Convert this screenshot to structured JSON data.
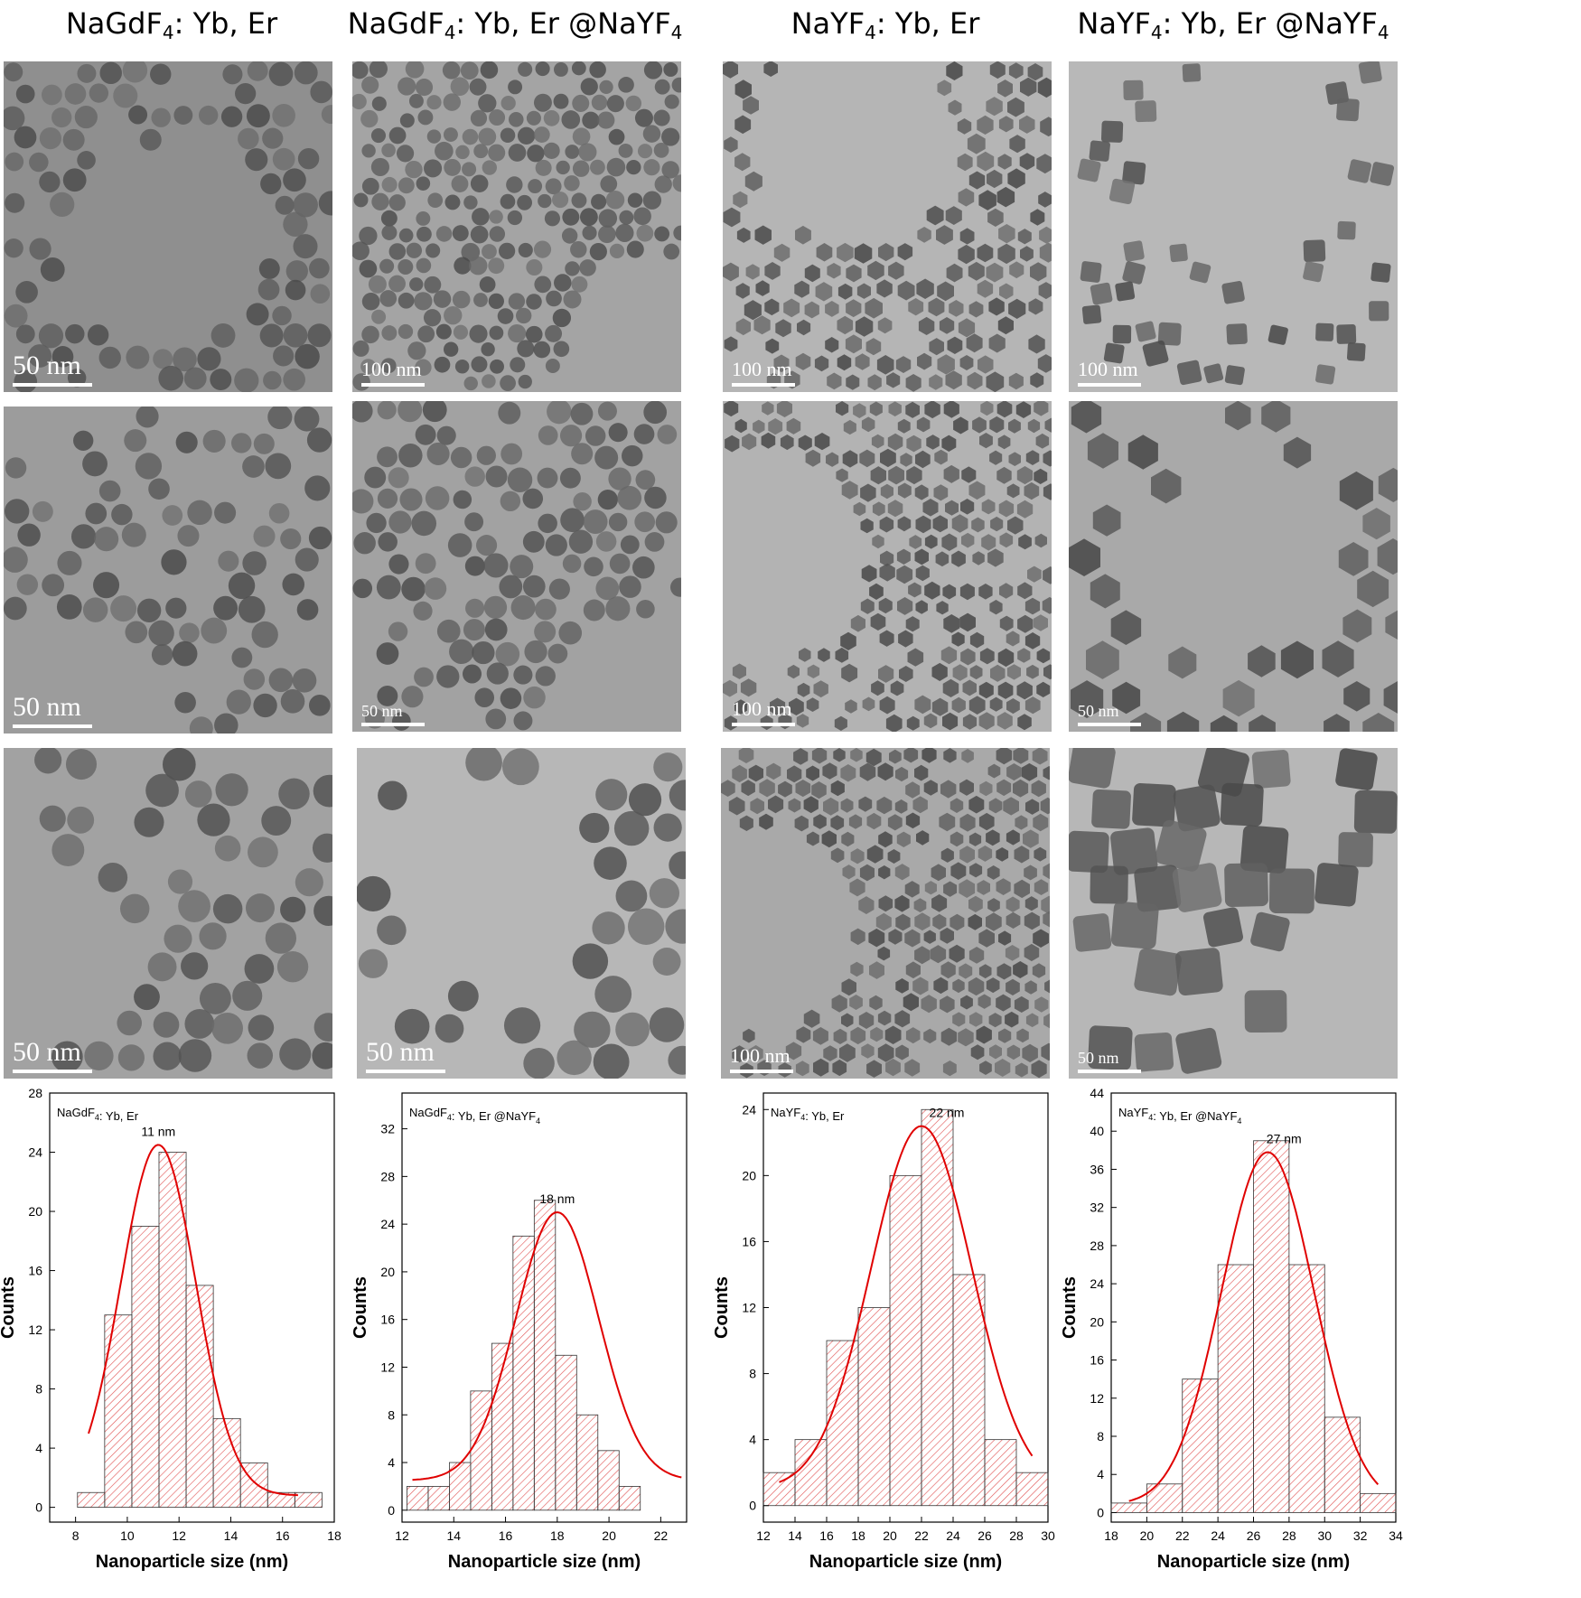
{
  "columns": [
    {
      "title_main": "NaGdF",
      "title_sub": "4",
      "title_rest": ": Yb, Er"
    },
    {
      "title_main": "NaGdF",
      "title_sub": "4",
      "title_rest": ": Yb, Er @NaYF",
      "title_sub2": "4"
    },
    {
      "title_main": "NaYF",
      "title_sub": "4",
      "title_rest": ": Yb, Er"
    },
    {
      "title_main": "NaYF",
      "title_sub": "4",
      "title_rest": ": Yb, Er @NaYF",
      "title_sub2": "4"
    }
  ],
  "scale_bars": [
    [
      "50 nm",
      "100 nm",
      "100 nm",
      "100 nm"
    ],
    [
      "50 nm",
      "50 nm",
      "100 nm",
      "50 nm"
    ],
    [
      "50 nm",
      "50 nm",
      "100 nm",
      "50 nm"
    ]
  ],
  "chart_data": [
    {
      "type": "bar",
      "title": "NaGdF4: Yb, Er",
      "annotation": "11 nm",
      "xlabel": "Nanoparticle size (nm)",
      "ylabel": "Counts",
      "xlim": [
        7,
        18
      ],
      "ylim": [
        -1,
        28
      ],
      "xticks": [
        8,
        10,
        12,
        14,
        16,
        18
      ],
      "yticks": [
        0,
        4,
        8,
        12,
        16,
        20,
        24,
        28
      ],
      "bin_width": 1.05,
      "bin_centers": [
        8.6,
        9.65,
        10.7,
        11.75,
        12.8,
        13.85,
        14.9,
        15.95,
        17.0
      ],
      "values": [
        1,
        13,
        19,
        24,
        15,
        6,
        3,
        1,
        1
      ],
      "fit": {
        "type": "gaussian",
        "center": 11.2,
        "amplitude": 23.7,
        "sigma": 1.45,
        "baseline": 0.8,
        "range": [
          8.5,
          16.6
        ]
      }
    },
    {
      "type": "bar",
      "title": "NaGdF4: Yb, Er @NaYF4",
      "annotation": "18 nm",
      "xlabel": "Nanoparticle size (nm)",
      "ylabel": "Counts",
      "xlim": [
        12,
        23
      ],
      "ylim": [
        -1,
        35
      ],
      "xticks": [
        12,
        14,
        16,
        18,
        20,
        22
      ],
      "yticks": [
        0,
        4,
        8,
        12,
        16,
        20,
        24,
        28,
        32
      ],
      "bin_width": 0.82,
      "bin_centers": [
        12.6,
        13.42,
        14.24,
        15.06,
        15.88,
        16.7,
        17.52,
        18.34,
        19.16,
        19.98,
        20.8,
        21.62,
        22.44
      ],
      "values": [
        2,
        2,
        4,
        10,
        14,
        23,
        26,
        13,
        8,
        5,
        2,
        0,
        0
      ],
      "fit": {
        "type": "gaussian",
        "center": 18.0,
        "amplitude": 22.5,
        "sigma": 1.6,
        "baseline": 2.5,
        "range": [
          12.4,
          22.8
        ]
      }
    },
    {
      "type": "bar",
      "title": "NaYF4: Yb, Er",
      "annotation": "22 nm",
      "xlabel": "Nanoparticle size (nm)",
      "ylabel": "Counts",
      "xlim": [
        12,
        30
      ],
      "ylim": [
        -1,
        25
      ],
      "xticks": [
        12,
        14,
        16,
        18,
        20,
        22,
        24,
        26,
        28,
        30
      ],
      "yticks": [
        0,
        4,
        8,
        12,
        16,
        20,
        24
      ],
      "bin_width": 2.0,
      "bin_centers": [
        13,
        15,
        17,
        19,
        21,
        23,
        25,
        27,
        29
      ],
      "values": [
        2,
        4,
        10,
        12,
        20,
        24,
        14,
        4,
        2
      ],
      "fit": {
        "type": "gaussian",
        "center": 22.0,
        "amplitude": 22.0,
        "sigma": 3.2,
        "baseline": 1.0,
        "range": [
          13,
          29
        ]
      }
    },
    {
      "type": "bar",
      "title": "NaYF4: Yb, Er @NaYF4",
      "annotation": "27 nm",
      "xlabel": "Nanoparticle size (nm)",
      "ylabel": "Counts",
      "xlim": [
        18,
        34
      ],
      "ylim": [
        -1,
        44
      ],
      "xticks": [
        18,
        20,
        22,
        24,
        26,
        28,
        30,
        32,
        34
      ],
      "yticks": [
        0,
        4,
        8,
        12,
        16,
        20,
        24,
        28,
        32,
        36,
        40,
        44
      ],
      "bin_width": 2.0,
      "bin_centers": [
        19,
        21,
        23,
        25,
        27,
        29,
        31,
        33
      ],
      "values": [
        1,
        3,
        14,
        26,
        39,
        26,
        10,
        2
      ],
      "fit": {
        "type": "gaussian",
        "center": 26.8,
        "amplitude": 37.0,
        "sigma": 2.6,
        "baseline": 0.8,
        "range": [
          19,
          33
        ]
      }
    }
  ]
}
